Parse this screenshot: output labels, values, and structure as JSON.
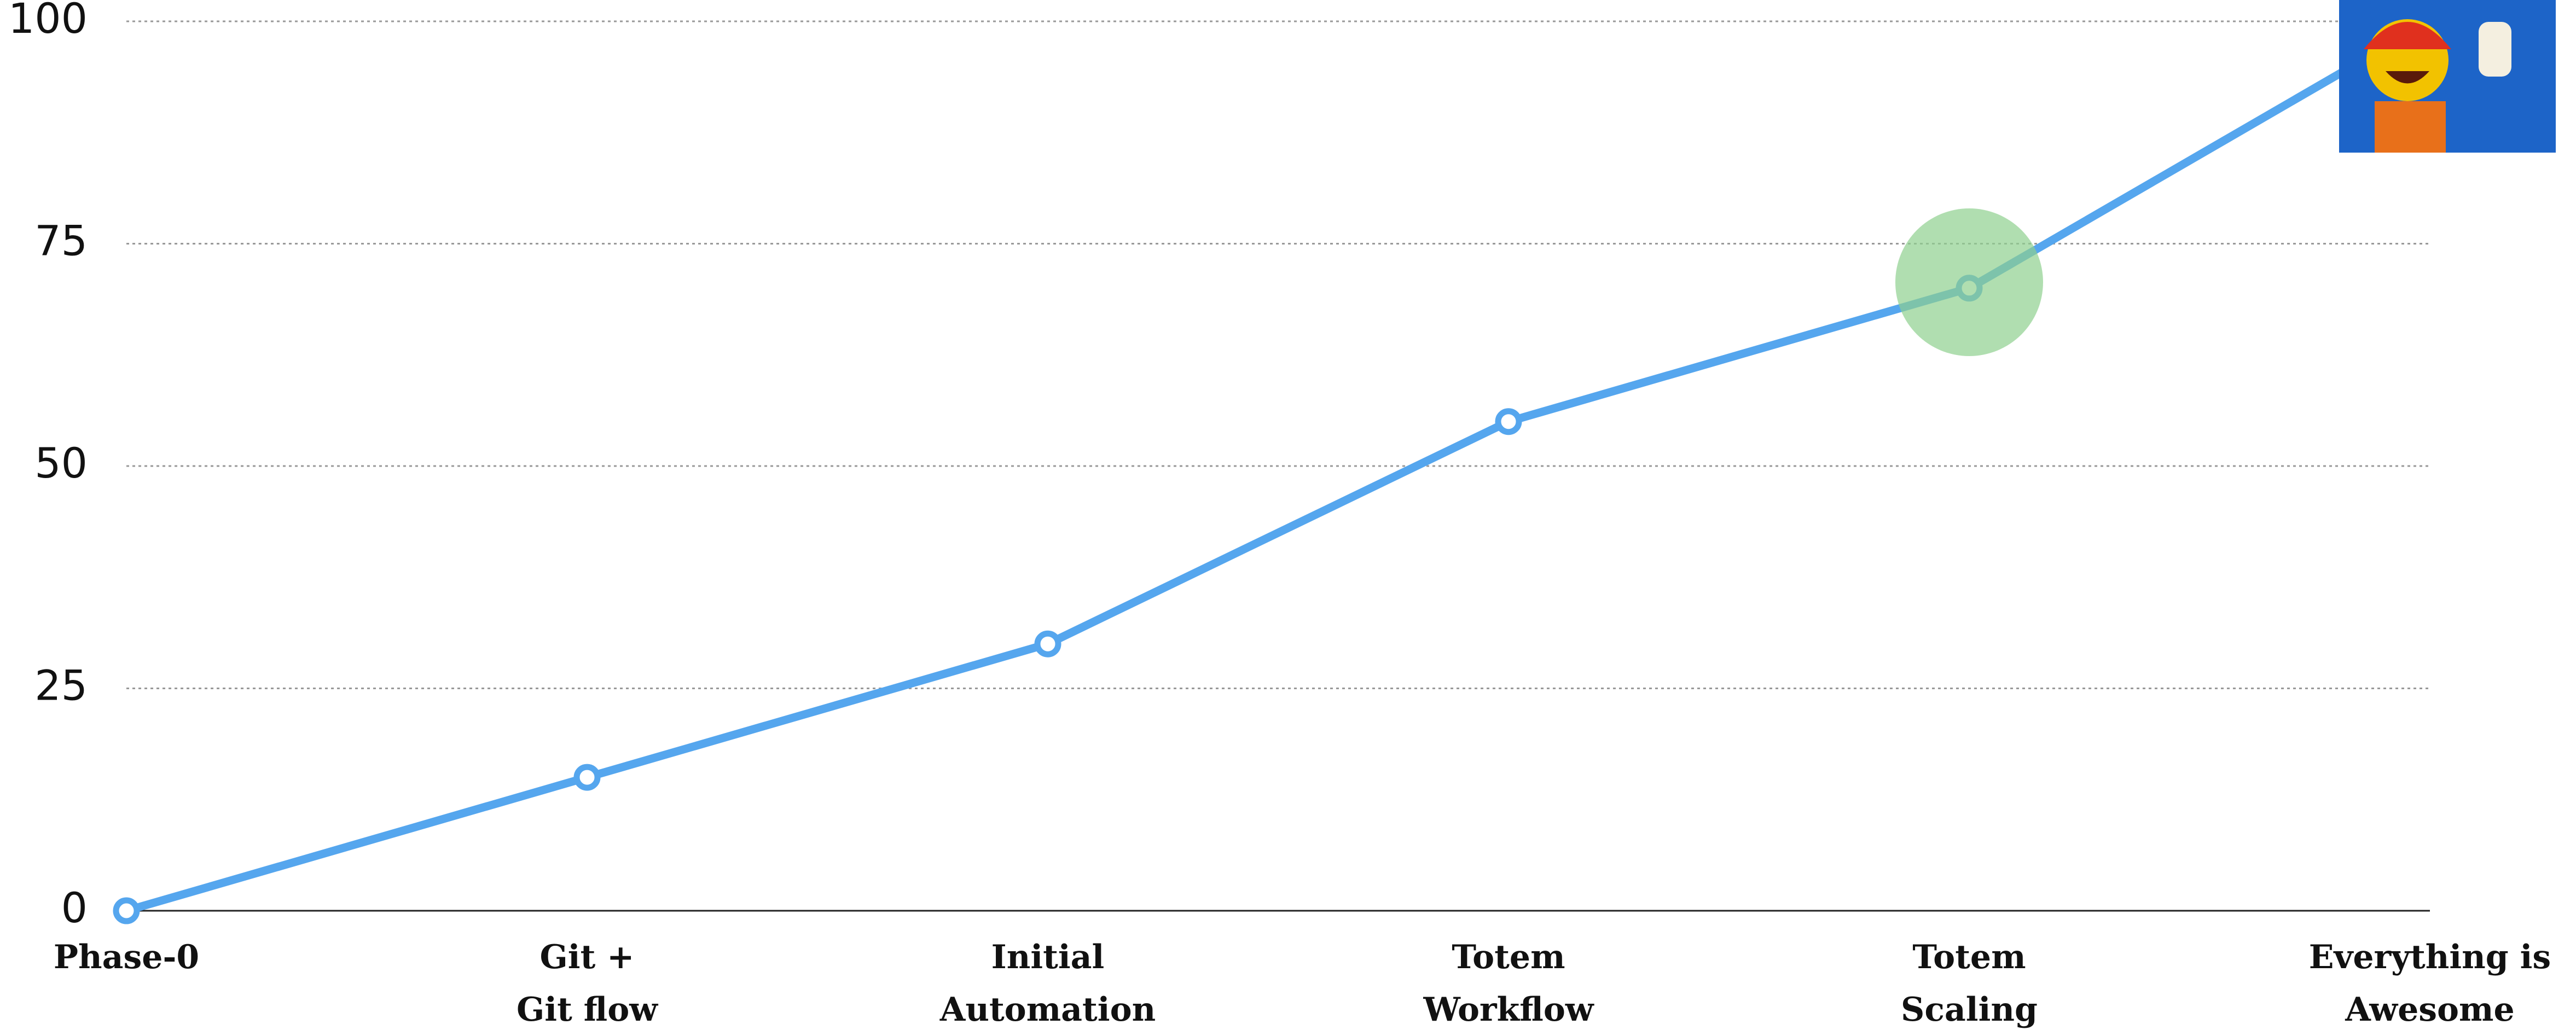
{
  "chart_data": {
    "type": "line",
    "categories": [
      "Phase-0",
      "Git +\nGit flow",
      "Initial\nAutomation",
      "Totem\nWorkflow",
      "Totem\nScaling",
      "Everything is\nAwesome"
    ],
    "values": [
      0,
      15,
      30,
      55,
      70,
      100
    ],
    "color": "#55a6ee",
    "ylim": [
      0,
      100
    ],
    "yticks": [
      0,
      25,
      50,
      75,
      100
    ],
    "grid": true
  }
}
